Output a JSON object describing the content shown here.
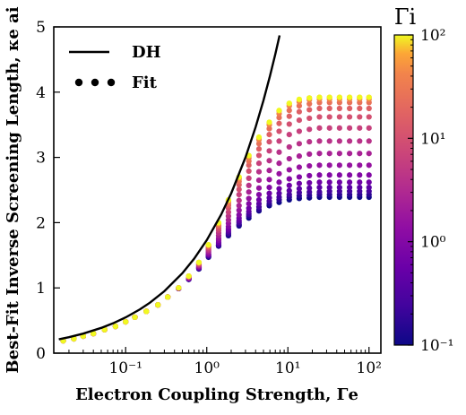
{
  "chart_data": {
    "type": "scatter",
    "xlabel": "Electron Coupling Strength, Γe",
    "ylabel": "Best-Fit Inverse Screening Length, κe ai",
    "xscale": "log",
    "xlim": [
      0.013,
      140
    ],
    "ylim": [
      0,
      5
    ],
    "x_ticks": [
      {
        "value": 0.1,
        "label": "10⁻¹"
      },
      {
        "value": 1,
        "label": "10⁰"
      },
      {
        "value": 10,
        "label": "10¹"
      },
      {
        "value": 100,
        "label": "10²"
      }
    ],
    "y_ticks": [
      {
        "value": 0,
        "label": "0"
      },
      {
        "value": 1,
        "label": "1"
      },
      {
        "value": 2,
        "label": "2"
      },
      {
        "value": 3,
        "label": "3"
      },
      {
        "value": 4,
        "label": "4"
      },
      {
        "value": 5,
        "label": "5"
      }
    ],
    "grid": false,
    "legend": {
      "placement": "top-left",
      "entries": [
        {
          "name": "DH",
          "style": "line",
          "color": "#000000"
        },
        {
          "name": "Fit",
          "style": "dots",
          "color": "#000000"
        }
      ]
    },
    "dh_curve": {
      "name": "DH",
      "color": "#000000",
      "x": [
        0.015,
        0.02,
        0.03,
        0.05,
        0.07,
        0.1,
        0.15,
        0.2,
        0.3,
        0.5,
        0.7,
        1,
        1.5,
        2,
        3,
        4,
        5,
        6,
        7,
        7.9
      ],
      "y": [
        0.212,
        0.245,
        0.3,
        0.387,
        0.458,
        0.548,
        0.671,
        0.775,
        0.949,
        1.225,
        1.449,
        1.732,
        2.121,
        2.449,
        3.0,
        3.464,
        3.873,
        4.243,
        4.583,
        4.87
      ]
    },
    "colorbar": {
      "title": "Γi",
      "scale": "log",
      "range": [
        0.1,
        100
      ],
      "ticks": [
        {
          "value": 0.1,
          "label": "10⁻¹"
        },
        {
          "value": 1,
          "label": "10⁰"
        },
        {
          "value": 10,
          "label": "10¹"
        },
        {
          "value": 100,
          "label": "10²"
        }
      ],
      "colormap": "plasma"
    },
    "fit_x": [
      0.017,
      0.023,
      0.03,
      0.04,
      0.055,
      0.075,
      0.1,
      0.13,
      0.18,
      0.25,
      0.33,
      0.45,
      0.6,
      0.8,
      1.05,
      1.4,
      1.85,
      2.5,
      3.3,
      4.4,
      5.9,
      7.8,
      10.4,
      13.8,
      18.4,
      24.5,
      32.6,
      43.3,
      57.6,
      76.6,
      100
    ],
    "fit_series": [
      {
        "gamma_i": 0.1,
        "y": [
          0.19,
          0.22,
          0.26,
          0.3,
          0.36,
          0.41,
          0.48,
          0.55,
          0.64,
          0.74,
          0.86,
          0.99,
          1.13,
          1.29,
          1.47,
          1.64,
          1.8,
          1.95,
          2.07,
          2.18,
          2.26,
          2.31,
          2.35,
          2.37,
          2.38,
          2.39,
          2.39,
          2.39,
          2.39,
          2.39,
          2.39
        ]
      },
      {
        "gamma_i": 0.16,
        "y": [
          0.19,
          0.22,
          0.26,
          0.3,
          0.36,
          0.41,
          0.48,
          0.55,
          0.64,
          0.74,
          0.86,
          0.99,
          1.13,
          1.3,
          1.48,
          1.65,
          1.82,
          1.97,
          2.1,
          2.2,
          2.29,
          2.35,
          2.39,
          2.41,
          2.42,
          2.43,
          2.43,
          2.43,
          2.43,
          2.43,
          2.43
        ]
      },
      {
        "gamma_i": 0.25,
        "y": [
          0.19,
          0.22,
          0.26,
          0.3,
          0.36,
          0.41,
          0.48,
          0.55,
          0.64,
          0.74,
          0.86,
          0.99,
          1.14,
          1.3,
          1.49,
          1.66,
          1.84,
          2.0,
          2.13,
          2.24,
          2.33,
          2.39,
          2.43,
          2.46,
          2.47,
          2.47,
          2.48,
          2.48,
          2.48,
          2.48,
          2.48
        ]
      },
      {
        "gamma_i": 0.4,
        "y": [
          0.19,
          0.22,
          0.26,
          0.3,
          0.36,
          0.41,
          0.48,
          0.55,
          0.64,
          0.74,
          0.86,
          0.99,
          1.14,
          1.31,
          1.5,
          1.68,
          1.87,
          2.03,
          2.17,
          2.29,
          2.38,
          2.45,
          2.49,
          2.52,
          2.53,
          2.54,
          2.54,
          2.54,
          2.54,
          2.54,
          2.54
        ]
      },
      {
        "gamma_i": 0.63,
        "y": [
          0.19,
          0.22,
          0.26,
          0.3,
          0.36,
          0.41,
          0.48,
          0.55,
          0.64,
          0.74,
          0.86,
          0.99,
          1.14,
          1.31,
          1.51,
          1.7,
          1.9,
          2.07,
          2.22,
          2.35,
          2.45,
          2.52,
          2.57,
          2.6,
          2.61,
          2.62,
          2.62,
          2.62,
          2.62,
          2.62,
          2.62
        ]
      },
      {
        "gamma_i": 1.0,
        "y": [
          0.19,
          0.22,
          0.26,
          0.3,
          0.36,
          0.41,
          0.48,
          0.55,
          0.64,
          0.74,
          0.86,
          0.99,
          1.15,
          1.32,
          1.52,
          1.73,
          1.94,
          2.12,
          2.29,
          2.43,
          2.54,
          2.62,
          2.67,
          2.7,
          2.72,
          2.73,
          2.73,
          2.73,
          2.73,
          2.73,
          2.73
        ]
      },
      {
        "gamma_i": 1.6,
        "y": [
          0.19,
          0.22,
          0.26,
          0.3,
          0.36,
          0.41,
          0.48,
          0.55,
          0.64,
          0.74,
          0.86,
          0.99,
          1.15,
          1.33,
          1.54,
          1.76,
          1.99,
          2.19,
          2.37,
          2.53,
          2.66,
          2.75,
          2.81,
          2.85,
          2.87,
          2.88,
          2.88,
          2.88,
          2.88,
          2.88,
          2.88
        ]
      },
      {
        "gamma_i": 2.5,
        "y": [
          0.19,
          0.22,
          0.26,
          0.3,
          0.36,
          0.41,
          0.48,
          0.55,
          0.64,
          0.74,
          0.86,
          1.0,
          1.16,
          1.34,
          1.56,
          1.8,
          2.04,
          2.26,
          2.47,
          2.65,
          2.8,
          2.91,
          2.98,
          3.02,
          3.05,
          3.06,
          3.06,
          3.06,
          3.06,
          3.06,
          3.06
        ]
      },
      {
        "gamma_i": 4.0,
        "y": [
          0.19,
          0.22,
          0.26,
          0.3,
          0.36,
          0.41,
          0.48,
          0.55,
          0.64,
          0.74,
          0.86,
          1.0,
          1.16,
          1.35,
          1.58,
          1.84,
          2.1,
          2.34,
          2.57,
          2.78,
          2.95,
          3.08,
          3.16,
          3.21,
          3.24,
          3.25,
          3.25,
          3.25,
          3.25,
          3.25,
          3.25
        ]
      },
      {
        "gamma_i": 6.3,
        "y": [
          0.19,
          0.22,
          0.26,
          0.3,
          0.36,
          0.41,
          0.48,
          0.55,
          0.64,
          0.74,
          0.86,
          1.0,
          1.17,
          1.36,
          1.6,
          1.88,
          2.16,
          2.43,
          2.68,
          2.91,
          3.1,
          3.25,
          3.35,
          3.4,
          3.43,
          3.45,
          3.45,
          3.45,
          3.45,
          3.45,
          3.45
        ]
      },
      {
        "gamma_i": 10,
        "y": [
          0.19,
          0.22,
          0.26,
          0.3,
          0.36,
          0.41,
          0.48,
          0.55,
          0.64,
          0.74,
          0.86,
          1.0,
          1.17,
          1.37,
          1.62,
          1.91,
          2.22,
          2.51,
          2.79,
          3.03,
          3.24,
          3.4,
          3.51,
          3.57,
          3.6,
          3.62,
          3.62,
          3.62,
          3.62,
          3.62,
          3.62
        ]
      },
      {
        "gamma_i": 16,
        "y": [
          0.19,
          0.22,
          0.26,
          0.3,
          0.36,
          0.41,
          0.48,
          0.55,
          0.64,
          0.74,
          0.86,
          1.0,
          1.17,
          1.38,
          1.63,
          1.94,
          2.26,
          2.58,
          2.88,
          3.13,
          3.35,
          3.52,
          3.63,
          3.7,
          3.73,
          3.75,
          3.75,
          3.75,
          3.75,
          3.75,
          3.75
        ]
      },
      {
        "gamma_i": 25,
        "y": [
          0.19,
          0.22,
          0.26,
          0.3,
          0.36,
          0.41,
          0.48,
          0.55,
          0.64,
          0.74,
          0.86,
          1.0,
          1.18,
          1.38,
          1.64,
          1.96,
          2.29,
          2.63,
          2.94,
          3.21,
          3.44,
          3.61,
          3.72,
          3.79,
          3.82,
          3.84,
          3.84,
          3.84,
          3.84,
          3.84,
          3.84
        ]
      },
      {
        "gamma_i": 40,
        "y": [
          0.19,
          0.22,
          0.26,
          0.3,
          0.36,
          0.41,
          0.48,
          0.55,
          0.64,
          0.74,
          0.86,
          1.0,
          1.18,
          1.39,
          1.65,
          1.98,
          2.32,
          2.67,
          2.99,
          3.27,
          3.5,
          3.67,
          3.79,
          3.85,
          3.88,
          3.89,
          3.89,
          3.89,
          3.89,
          3.89,
          3.89
        ]
      },
      {
        "gamma_i": 63,
        "y": [
          0.19,
          0.22,
          0.26,
          0.3,
          0.36,
          0.41,
          0.48,
          0.55,
          0.64,
          0.74,
          0.86,
          1.0,
          1.18,
          1.39,
          1.66,
          1.99,
          2.34,
          2.69,
          3.02,
          3.3,
          3.53,
          3.71,
          3.82,
          3.88,
          3.91,
          3.92,
          3.92,
          3.92,
          3.92,
          3.92,
          3.92
        ]
      },
      {
        "gamma_i": 100,
        "y": [
          0.19,
          0.22,
          0.26,
          0.3,
          0.36,
          0.41,
          0.48,
          0.55,
          0.64,
          0.74,
          0.86,
          1.0,
          1.18,
          1.39,
          1.66,
          2.0,
          2.35,
          2.7,
          3.03,
          3.31,
          3.54,
          3.72,
          3.83,
          3.89,
          3.91,
          3.92,
          3.92,
          3.92,
          3.92,
          3.92,
          3.92
        ]
      }
    ]
  }
}
